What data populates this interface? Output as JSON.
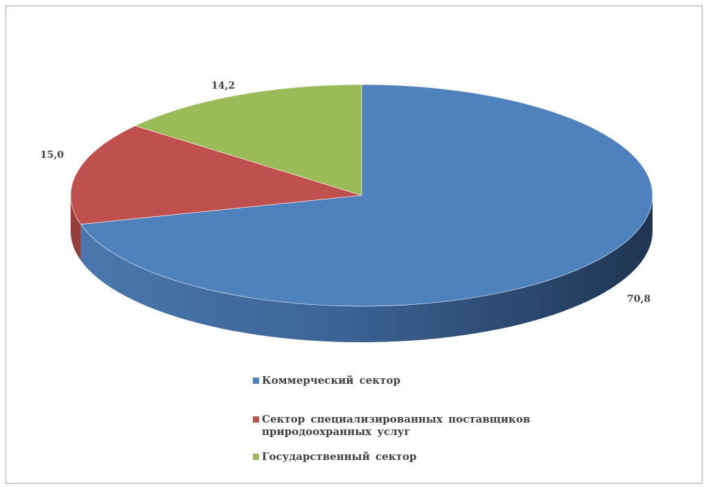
{
  "chart_data": {
    "type": "pie",
    "style": "3d",
    "categories": [
      "Коммерческий сектор",
      "Сектор специализированных поставщиков природоохранных услуг",
      "Государственный сектор"
    ],
    "values": [
      70.8,
      15.0,
      14.2
    ],
    "value_labels": [
      "70,8",
      "15,0",
      "14,2"
    ],
    "colors": [
      "#4f81bd",
      "#c0504d",
      "#9bbb59"
    ],
    "side_colors": [
      "#3b6292",
      "#96403d",
      "#789342"
    ],
    "legend_position": "bottom",
    "title": ""
  },
  "legend": {
    "items": [
      {
        "line1": "Коммерческий сектор",
        "line2": "",
        "color": "#4f81bd"
      },
      {
        "line1": "Сектор специализированных поставщиков",
        "line2": "природоохранных услуг",
        "color": "#c0504d"
      },
      {
        "line1": "Государственный сектор",
        "line2": "",
        "color": "#9bbb59"
      }
    ]
  }
}
